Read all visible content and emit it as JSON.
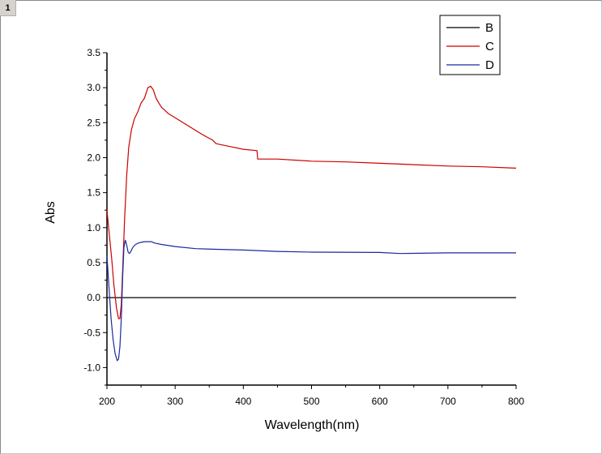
{
  "page_label": "1",
  "chart_data": {
    "type": "line",
    "title": "",
    "xlabel": "Wavelength(nm)",
    "ylabel": "Abs",
    "xlim": [
      200,
      800
    ],
    "ylim": [
      -1.25,
      3.5
    ],
    "x_ticks": [
      200,
      300,
      400,
      500,
      600,
      700,
      800
    ],
    "y_ticks": [
      -1.0,
      -0.5,
      0.0,
      0.5,
      1.0,
      1.5,
      2.0,
      2.5,
      3.0,
      3.5
    ],
    "y_tick_labels": [
      "-1.0",
      "-0.5",
      "0.0",
      "0.5",
      "1.0",
      "1.5",
      "2.0",
      "2.5",
      "3.0",
      "3.5"
    ],
    "x_tick_labels": [
      "200",
      "300",
      "400",
      "500",
      "600",
      "700",
      "800"
    ],
    "grid": false,
    "legend_position": "top-right",
    "series": [
      {
        "name": "B",
        "color": "#000000",
        "x": [
          200,
          300,
          400,
          500,
          600,
          700,
          800
        ],
        "y": [
          0.0,
          0.0,
          0.0,
          0.0,
          0.0,
          0.0,
          0.0
        ]
      },
      {
        "name": "C",
        "color": "#cc0000",
        "x": [
          200,
          203,
          207,
          210,
          214,
          217,
          219,
          221,
          223,
          226,
          229,
          232,
          236,
          240,
          245,
          250,
          255,
          260,
          264,
          268,
          272,
          276,
          280,
          290,
          300,
          320,
          340,
          355,
          360,
          380,
          400,
          420,
          421,
          450,
          500,
          550,
          600,
          650,
          700,
          750,
          800
        ],
        "y": [
          1.25,
          0.95,
          0.55,
          0.2,
          -0.15,
          -0.3,
          -0.3,
          -0.1,
          0.4,
          1.15,
          1.75,
          2.15,
          2.4,
          2.55,
          2.65,
          2.78,
          2.85,
          3.0,
          3.02,
          2.97,
          2.85,
          2.78,
          2.72,
          2.63,
          2.57,
          2.45,
          2.33,
          2.25,
          2.2,
          2.16,
          2.12,
          2.1,
          1.98,
          1.98,
          1.95,
          1.94,
          1.92,
          1.9,
          1.88,
          1.87,
          1.85
        ]
      },
      {
        "name": "D",
        "color": "#1a2a9c",
        "x": [
          200,
          203,
          206,
          209,
          212,
          215,
          217,
          219,
          221,
          223,
          225,
          227,
          229,
          231,
          233,
          235,
          238,
          242,
          246,
          250,
          255,
          260,
          265,
          270,
          280,
          300,
          330,
          360,
          400,
          450,
          500,
          600,
          630,
          700,
          800
        ],
        "y": [
          0.6,
          0.15,
          -0.3,
          -0.6,
          -0.8,
          -0.9,
          -0.88,
          -0.7,
          -0.3,
          0.3,
          0.72,
          0.82,
          0.75,
          0.65,
          0.63,
          0.66,
          0.72,
          0.76,
          0.78,
          0.79,
          0.8,
          0.8,
          0.8,
          0.78,
          0.76,
          0.73,
          0.7,
          0.69,
          0.68,
          0.66,
          0.65,
          0.645,
          0.63,
          0.64,
          0.64
        ]
      }
    ]
  }
}
